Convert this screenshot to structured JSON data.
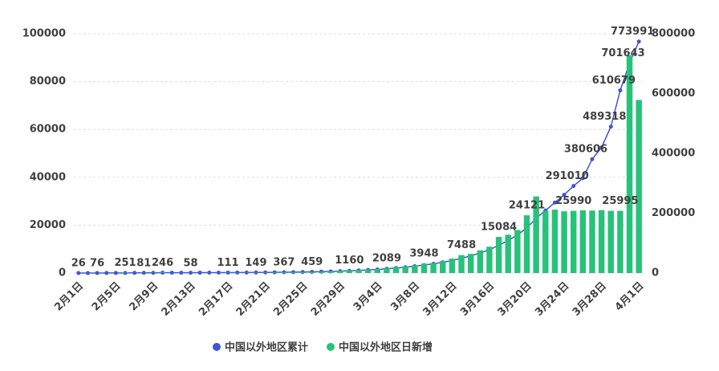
{
  "chart_data": {
    "type": "bar_line",
    "categories": [
      "2月1日",
      null,
      null,
      null,
      "2月5日",
      null,
      null,
      null,
      "2月9日",
      null,
      null,
      null,
      "2月13日",
      null,
      null,
      null,
      "2月17日",
      null,
      null,
      null,
      "2月21日",
      null,
      null,
      null,
      "2月25日",
      null,
      null,
      null,
      "2月29日",
      null,
      null,
      null,
      "3月4日",
      null,
      null,
      null,
      "3月8日",
      null,
      null,
      null,
      "3月12日",
      null,
      null,
      null,
      "3月16日",
      null,
      null,
      null,
      "3月20日",
      null,
      null,
      null,
      "3月24日",
      null,
      null,
      null,
      "3月28日",
      null,
      null,
      null,
      "4月1日"
    ],
    "series": [
      {
        "name": "中国以外地区累计",
        "color": "#4154d6",
        "axis": "y2",
        "kind": "line",
        "values": [
          26,
          66,
          142,
          172,
          222,
          473,
          533,
          614,
          714,
          960,
          1000,
          1050,
          1108,
          1178,
          1268,
          1368,
          1479,
          1599,
          1729,
          1878,
          2078,
          2328,
          2695,
          3095,
          3515,
          3974,
          4574,
          5374,
          6374,
          7534,
          8834,
          10334,
          12134,
          14223,
          16723,
          19523,
          22723,
          26671,
          30871,
          35871,
          41871,
          49359,
          57359,
          66859,
          77859,
          92943,
          108943,
          126943,
          151064,
          183064,
          209064,
          235564,
          261564,
          291010,
          317210,
          380606,
          420000,
          489318,
          610679,
          701643,
          773991
        ],
        "value_labels": [
          null,
          null,
          null,
          null,
          null,
          null,
          null,
          null,
          null,
          null,
          null,
          null,
          null,
          null,
          null,
          null,
          null,
          null,
          null,
          null,
          null,
          null,
          null,
          null,
          null,
          null,
          null,
          null,
          null,
          null,
          null,
          null,
          null,
          null,
          null,
          null,
          null,
          null,
          null,
          null,
          null,
          null,
          null,
          null,
          null,
          null,
          null,
          null,
          null,
          null,
          null,
          null,
          null,
          "291010",
          null,
          "380606",
          null,
          "489318",
          "610679",
          "701643",
          "773991"
        ]
      },
      {
        "name": "中国以外地区日新增",
        "color": "#27c27a",
        "axis": "y",
        "kind": "bar",
        "values": [
          26,
          40,
          76,
          30,
          50,
          251,
          60,
          81,
          100,
          246,
          40,
          50,
          58,
          70,
          90,
          100,
          111,
          120,
          130,
          149,
          200,
          250,
          367,
          400,
          420,
          459,
          600,
          800,
          1000,
          1160,
          1300,
          1500,
          1800,
          2089,
          2500,
          2800,
          3200,
          3948,
          4200,
          5000,
          6000,
          7488,
          8000,
          9500,
          11000,
          15084,
          16000,
          18000,
          24121,
          32000,
          26000,
          26500,
          25800,
          25990,
          26200,
          26100,
          26300,
          26000,
          25995,
          91000,
          72348
        ],
        "value_labels": [
          "26",
          null,
          "76",
          null,
          null,
          "251",
          null,
          "81",
          null,
          "246",
          null,
          null,
          "58",
          null,
          null,
          null,
          "111",
          null,
          null,
          "149",
          null,
          null,
          "367",
          null,
          null,
          "459",
          null,
          null,
          null,
          "1160",
          null,
          null,
          null,
          "2089",
          null,
          null,
          null,
          "3948",
          null,
          null,
          null,
          "7488",
          null,
          null,
          null,
          "15084",
          null,
          null,
          "24121",
          null,
          null,
          null,
          null,
          "25990",
          null,
          null,
          null,
          null,
          "25995",
          null,
          null
        ]
      }
    ],
    "ylim": [
      0,
      100000
    ],
    "yticks": [
      0,
      20000,
      40000,
      60000,
      80000,
      100000
    ],
    "y2lim": [
      0,
      800000
    ],
    "y2ticks": [
      0,
      200000,
      400000,
      600000,
      800000
    ],
    "grid": true
  }
}
